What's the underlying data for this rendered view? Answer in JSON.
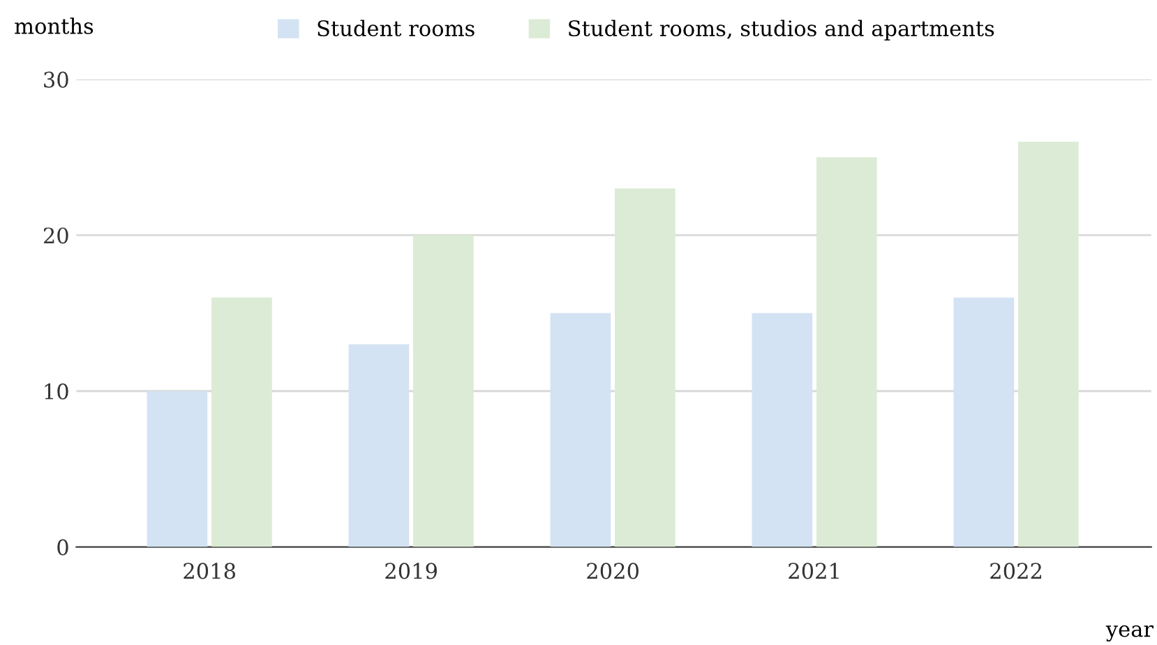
{
  "chart_data": {
    "type": "bar",
    "xlabel": "year",
    "ylabel": "months",
    "categories": [
      "2018",
      "2019",
      "2020",
      "2021",
      "2022"
    ],
    "series": [
      {
        "name": "Student rooms",
        "color": "#d4e3f3",
        "values": [
          10,
          13,
          15,
          15,
          16
        ]
      },
      {
        "name": "Student rooms, studios and apartments",
        "color": "#dcebd5",
        "values": [
          16,
          20,
          23,
          25,
          26
        ]
      }
    ],
    "ylim": [
      0,
      30
    ],
    "yticks": [
      0,
      10,
      20,
      30
    ],
    "grid": "y",
    "legend": "top"
  }
}
